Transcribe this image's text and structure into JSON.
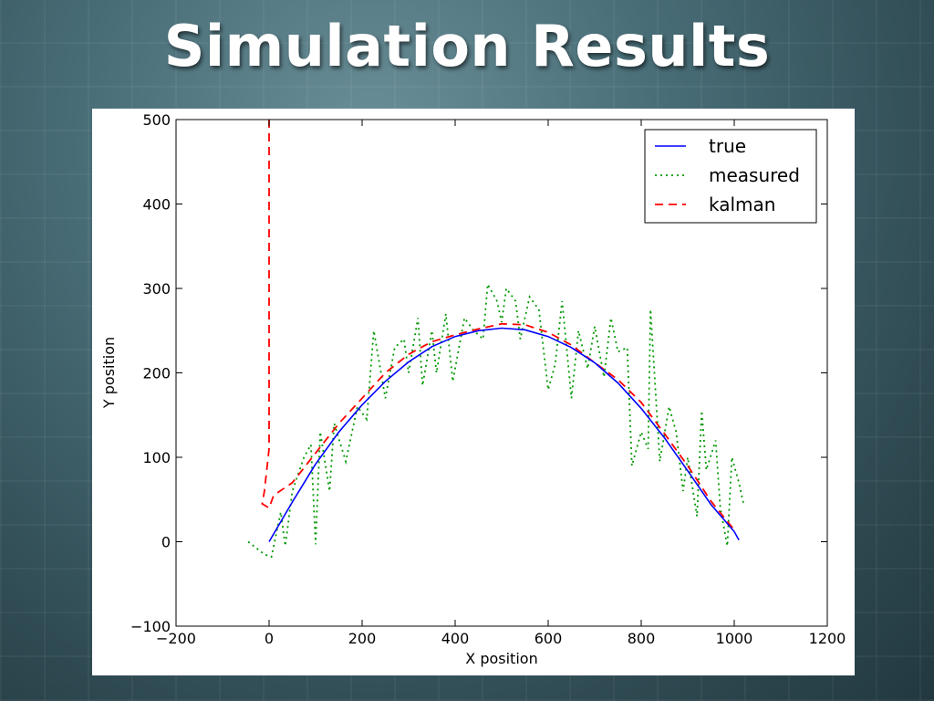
{
  "slide": {
    "title": "Simulation Results"
  },
  "chart_data": {
    "type": "line",
    "title": "",
    "xlabel": "X position",
    "ylabel": "Y position",
    "xlim": [
      -200,
      1200
    ],
    "ylim": [
      -100,
      500
    ],
    "xticks": [
      -200,
      0,
      200,
      400,
      600,
      800,
      1000,
      1200
    ],
    "yticks": [
      -100,
      0,
      100,
      200,
      300,
      400,
      500
    ],
    "grid": false,
    "legend_position": "top-right",
    "series": [
      {
        "name": "true",
        "style": "solid",
        "color": "#0000ff",
        "points": [
          [
            0,
            0
          ],
          [
            50,
            47
          ],
          [
            100,
            92
          ],
          [
            150,
            130
          ],
          [
            200,
            162
          ],
          [
            250,
            190
          ],
          [
            300,
            213
          ],
          [
            350,
            231
          ],
          [
            400,
            243
          ],
          [
            450,
            250
          ],
          [
            500,
            253
          ],
          [
            550,
            251
          ],
          [
            600,
            243
          ],
          [
            650,
            230
          ],
          [
            700,
            212
          ],
          [
            750,
            188
          ],
          [
            800,
            158
          ],
          [
            850,
            123
          ],
          [
            900,
            84
          ],
          [
            950,
            44
          ],
          [
            1000,
            12
          ],
          [
            1010,
            2
          ]
        ]
      },
      {
        "name": "measured",
        "style": "dotted",
        "color": "#009900",
        "points": [
          [
            -45,
            0
          ],
          [
            -10,
            -15
          ],
          [
            5,
            -18
          ],
          [
            25,
            35
          ],
          [
            35,
            -5
          ],
          [
            50,
            60
          ],
          [
            75,
            100
          ],
          [
            90,
            115
          ],
          [
            100,
            -3
          ],
          [
            110,
            130
          ],
          [
            130,
            60
          ],
          [
            140,
            140
          ],
          [
            165,
            95
          ],
          [
            190,
            160
          ],
          [
            210,
            145
          ],
          [
            225,
            250
          ],
          [
            250,
            170
          ],
          [
            270,
            230
          ],
          [
            290,
            240
          ],
          [
            300,
            200
          ],
          [
            320,
            265
          ],
          [
            330,
            185
          ],
          [
            350,
            250
          ],
          [
            360,
            200
          ],
          [
            380,
            270
          ],
          [
            395,
            190
          ],
          [
            420,
            265
          ],
          [
            440,
            250
          ],
          [
            460,
            240
          ],
          [
            470,
            305
          ],
          [
            490,
            285
          ],
          [
            500,
            260
          ],
          [
            510,
            300
          ],
          [
            530,
            285
          ],
          [
            540,
            240
          ],
          [
            560,
            290
          ],
          [
            580,
            275
          ],
          [
            600,
            180
          ],
          [
            615,
            210
          ],
          [
            630,
            285
          ],
          [
            650,
            170
          ],
          [
            665,
            250
          ],
          [
            685,
            205
          ],
          [
            700,
            255
          ],
          [
            720,
            195
          ],
          [
            735,
            265
          ],
          [
            750,
            225
          ],
          [
            770,
            230
          ],
          [
            780,
            90
          ],
          [
            800,
            130
          ],
          [
            815,
            110
          ],
          [
            820,
            275
          ],
          [
            840,
            95
          ],
          [
            860,
            160
          ],
          [
            875,
            130
          ],
          [
            890,
            60
          ],
          [
            900,
            100
          ],
          [
            920,
            30
          ],
          [
            930,
            155
          ],
          [
            940,
            85
          ],
          [
            960,
            120
          ],
          [
            970,
            40
          ],
          [
            985,
            -5
          ],
          [
            995,
            100
          ],
          [
            1010,
            70
          ],
          [
            1020,
            45
          ]
        ]
      },
      {
        "name": "kalman",
        "style": "dashed",
        "color": "#ff0000",
        "points": [
          [
            0,
            500
          ],
          [
            0,
            480
          ],
          [
            0,
            300
          ],
          [
            0,
            110
          ],
          [
            -10,
            60
          ],
          [
            -15,
            45
          ],
          [
            0,
            40
          ],
          [
            10,
            55
          ],
          [
            50,
            70
          ],
          [
            100,
            105
          ],
          [
            150,
            140
          ],
          [
            200,
            170
          ],
          [
            250,
            200
          ],
          [
            300,
            222
          ],
          [
            350,
            237
          ],
          [
            400,
            245
          ],
          [
            450,
            252
          ],
          [
            500,
            258
          ],
          [
            550,
            257
          ],
          [
            600,
            248
          ],
          [
            650,
            233
          ],
          [
            700,
            212
          ],
          [
            750,
            192
          ],
          [
            800,
            165
          ],
          [
            850,
            128
          ],
          [
            900,
            90
          ],
          [
            950,
            48
          ],
          [
            1000,
            14
          ]
        ]
      }
    ]
  }
}
